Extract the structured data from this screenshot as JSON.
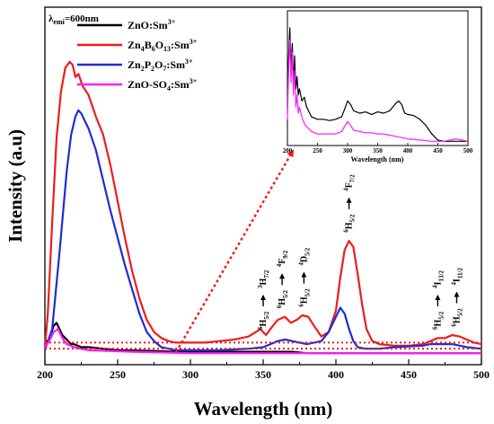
{
  "chart_data": {
    "type": "line",
    "xlabel": "Wavelength (nm)",
    "ylabel": "Intensity (a.u)",
    "xlim": [
      200,
      500
    ],
    "ylim": [
      0,
      1
    ],
    "xticks": [
      200,
      250,
      300,
      350,
      400,
      450,
      500
    ],
    "emission_label": "λ",
    "emission_sub": "emi",
    "emission_value": "=600nm",
    "legend": [
      {
        "parts": [
          {
            "t": "ZnO:Sm"
          },
          {
            "t": "3+",
            "sup": true
          }
        ],
        "color": "#000000"
      },
      {
        "parts": [
          {
            "t": "Zn"
          },
          {
            "t": "4",
            "sub": true
          },
          {
            "t": "B"
          },
          {
            "t": "6",
            "sub": true
          },
          {
            "t": "O"
          },
          {
            "t": "13",
            "sub": true
          },
          {
            "t": ":Sm"
          },
          {
            "t": "3+",
            "sup": true
          }
        ],
        "color": "#ee1c1c"
      },
      {
        "parts": [
          {
            "t": "Zn"
          },
          {
            "t": "2",
            "sub": true
          },
          {
            "t": "P"
          },
          {
            "t": "2",
            "sub": true
          },
          {
            "t": "O"
          },
          {
            "t": "7",
            "sub": true
          },
          {
            "t": ":Sm"
          },
          {
            "t": "3+",
            "sup": true
          }
        ],
        "color": "#1f2bd6"
      },
      {
        "parts": [
          {
            "t": "ZnO-SO"
          },
          {
            "t": "4",
            "sub": true
          },
          {
            "t": ":Sm"
          },
          {
            "t": "3+",
            "sup": true
          }
        ],
        "color": "#ff1cff"
      }
    ],
    "series": [
      {
        "color": "#000000",
        "x": [
          200,
          202,
          204,
          206,
          208,
          210,
          212,
          214,
          216,
          218,
          220,
          225,
          230,
          240,
          250,
          270,
          290,
          300,
          310,
          330,
          350,
          360,
          370,
          380,
          390,
          400,
          420,
          440,
          460,
          480,
          500
        ],
        "y": [
          0.06,
          0.06,
          0.08,
          0.11,
          0.12,
          0.1,
          0.08,
          0.07,
          0.06,
          0.05,
          0.05,
          0.04,
          0.04,
          0.035,
          0.03,
          0.028,
          0.025,
          0.025,
          0.025,
          0.025,
          0.025,
          0.025,
          0.025,
          0.02,
          0.02,
          0.02,
          0.02,
          0.02,
          0.02,
          0.02,
          0.02
        ]
      },
      {
        "color": "#ee1c1c",
        "x": [
          200,
          202,
          205,
          208,
          211,
          214,
          217,
          219,
          221,
          223,
          226,
          230,
          235,
          240,
          245,
          250,
          255,
          260,
          265,
          270,
          275,
          280,
          285,
          290,
          300,
          310,
          320,
          330,
          335,
          340,
          345,
          348,
          352,
          355,
          360,
          365,
          369,
          373,
          377,
          381,
          385,
          390,
          395,
          400,
          403,
          406,
          409,
          412,
          415,
          418,
          421,
          425,
          430,
          440,
          450,
          460,
          465,
          470,
          475,
          480,
          485,
          490,
          495,
          500
        ],
        "y": [
          0.04,
          0.15,
          0.45,
          0.73,
          0.88,
          0.96,
          0.98,
          0.97,
          0.93,
          0.94,
          0.9,
          0.87,
          0.8,
          0.74,
          0.64,
          0.52,
          0.4,
          0.29,
          0.2,
          0.13,
          0.09,
          0.07,
          0.06,
          0.055,
          0.055,
          0.055,
          0.06,
          0.065,
          0.07,
          0.075,
          0.09,
          0.1,
          0.08,
          0.1,
          0.13,
          0.14,
          0.12,
          0.13,
          0.145,
          0.14,
          0.11,
          0.075,
          0.09,
          0.16,
          0.27,
          0.36,
          0.39,
          0.37,
          0.28,
          0.18,
          0.1,
          0.06,
          0.05,
          0.045,
          0.045,
          0.05,
          0.06,
          0.07,
          0.07,
          0.08,
          0.075,
          0.065,
          0.055,
          0.05
        ]
      },
      {
        "color": "#1f2bd6",
        "x": [
          200,
          205,
          210,
          215,
          218,
          221,
          223,
          225,
          227,
          230,
          235,
          240,
          245,
          250,
          255,
          260,
          265,
          270,
          275,
          280,
          285,
          290,
          300,
          320,
          340,
          350,
          355,
          360,
          365,
          370,
          375,
          380,
          390,
          395,
          400,
          403,
          406,
          409,
          412,
          415,
          420,
          430,
          440,
          460,
          465,
          470,
          475,
          480,
          490,
          500
        ],
        "y": [
          0.03,
          0.1,
          0.35,
          0.62,
          0.74,
          0.8,
          0.82,
          0.81,
          0.79,
          0.76,
          0.69,
          0.59,
          0.49,
          0.4,
          0.31,
          0.23,
          0.15,
          0.09,
          0.06,
          0.04,
          0.035,
          0.03,
          0.03,
          0.03,
          0.035,
          0.04,
          0.05,
          0.06,
          0.065,
          0.06,
          0.055,
          0.05,
          0.06,
          0.09,
          0.14,
          0.17,
          0.15,
          0.1,
          0.06,
          0.04,
          0.035,
          0.035,
          0.04,
          0.045,
          0.05,
          0.05,
          0.05,
          0.05,
          0.04,
          0.035
        ]
      },
      {
        "color": "#ff1cff",
        "x": [
          200,
          203,
          206,
          209,
          212,
          215,
          220,
          230,
          260,
          300,
          350,
          400,
          450,
          500
        ],
        "y": [
          0.04,
          0.06,
          0.09,
          0.1,
          0.07,
          0.05,
          0.04,
          0.03,
          0.025,
          0.02,
          0.02,
          0.02,
          0.02,
          0.02
        ]
      }
    ],
    "baselines": [
      {
        "y": 0.055
      },
      {
        "y": 0.035
      }
    ],
    "annotations": [
      {
        "x": 350,
        "y": 0.08,
        "lower": {
          "sup": "6",
          "main": "H",
          "sub": "5/2"
        },
        "upper": {
          "sup": "3",
          "main": "H",
          "sub": "7/2"
        }
      },
      {
        "x": 363,
        "y": 0.15,
        "lower": {
          "sup": "6",
          "main": "H",
          "sub": "5/2"
        },
        "upper": {
          "sup": "4",
          "main": "F",
          "sub": "9/2"
        }
      },
      {
        "x": 378,
        "y": 0.155,
        "lower": {
          "sup": "6",
          "main": "H",
          "sub": "5/2"
        },
        "upper": {
          "sup": "4",
          "main": "D",
          "sub": "5/2"
        }
      },
      {
        "x": 409,
        "y": 0.4,
        "lower": {
          "sup": "6",
          "main": "H",
          "sub": "5/2"
        },
        "upper": {
          "sup": "4",
          "main": "F",
          "sub": "7/2"
        }
      },
      {
        "x": 470,
        "y": 0.08,
        "lower": {
          "sup": "6",
          "main": "H",
          "sub": "5/2"
        },
        "upper": {
          "sup": "4",
          "main": "I",
          "sub": "13/2"
        }
      },
      {
        "x": 483,
        "y": 0.09,
        "lower": {
          "sup": "6",
          "main": "H",
          "sub": "5/2"
        },
        "upper": {
          "sup": "4",
          "main": "I",
          "sub": "11/2"
        }
      }
    ],
    "inset": {
      "xlabel": "Wavelength (nm)",
      "xlim": [
        200,
        500
      ],
      "ylim": [
        0,
        1
      ],
      "xticks": [
        200,
        250,
        300,
        350,
        400,
        450,
        500
      ],
      "series": [
        {
          "color": "#000000",
          "x": [
            200,
            202,
            204,
            206,
            208,
            210,
            212,
            214,
            216,
            218,
            220,
            224,
            228,
            232,
            240,
            250,
            260,
            270,
            280,
            290,
            295,
            300,
            305,
            310,
            320,
            330,
            340,
            350,
            360,
            370,
            380,
            385,
            390,
            395,
            400,
            410,
            420,
            430,
            440,
            450,
            460,
            480,
            500
          ],
          "y": [
            0.3,
            0.7,
            0.95,
            0.6,
            0.82,
            0.5,
            0.72,
            0.45,
            0.55,
            0.4,
            0.45,
            0.35,
            0.38,
            0.3,
            0.22,
            0.2,
            0.2,
            0.19,
            0.2,
            0.22,
            0.28,
            0.35,
            0.32,
            0.27,
            0.25,
            0.26,
            0.24,
            0.26,
            0.25,
            0.27,
            0.33,
            0.35,
            0.32,
            0.25,
            0.24,
            0.23,
            0.2,
            0.15,
            0.08,
            0.03,
            0.02,
            0.02,
            0.02
          ]
        },
        {
          "color": "#ff1cff",
          "x": [
            200,
            202,
            204,
            206,
            208,
            210,
            212,
            214,
            216,
            218,
            220,
            225,
            230,
            240,
            250,
            260,
            270,
            280,
            290,
            295,
            300,
            305,
            310,
            320,
            330,
            340,
            350,
            360,
            370,
            380,
            400,
            420,
            440,
            460,
            470,
            480,
            490,
            500
          ],
          "y": [
            0.2,
            0.6,
            0.85,
            0.5,
            0.75,
            0.4,
            0.6,
            0.3,
            0.4,
            0.25,
            0.3,
            0.2,
            0.15,
            0.1,
            0.08,
            0.08,
            0.08,
            0.08,
            0.1,
            0.14,
            0.18,
            0.15,
            0.11,
            0.1,
            0.09,
            0.09,
            0.08,
            0.08,
            0.07,
            0.06,
            0.04,
            0.03,
            0.02,
            0.02,
            0.03,
            0.04,
            0.03,
            0.02
          ]
        }
      ]
    }
  }
}
